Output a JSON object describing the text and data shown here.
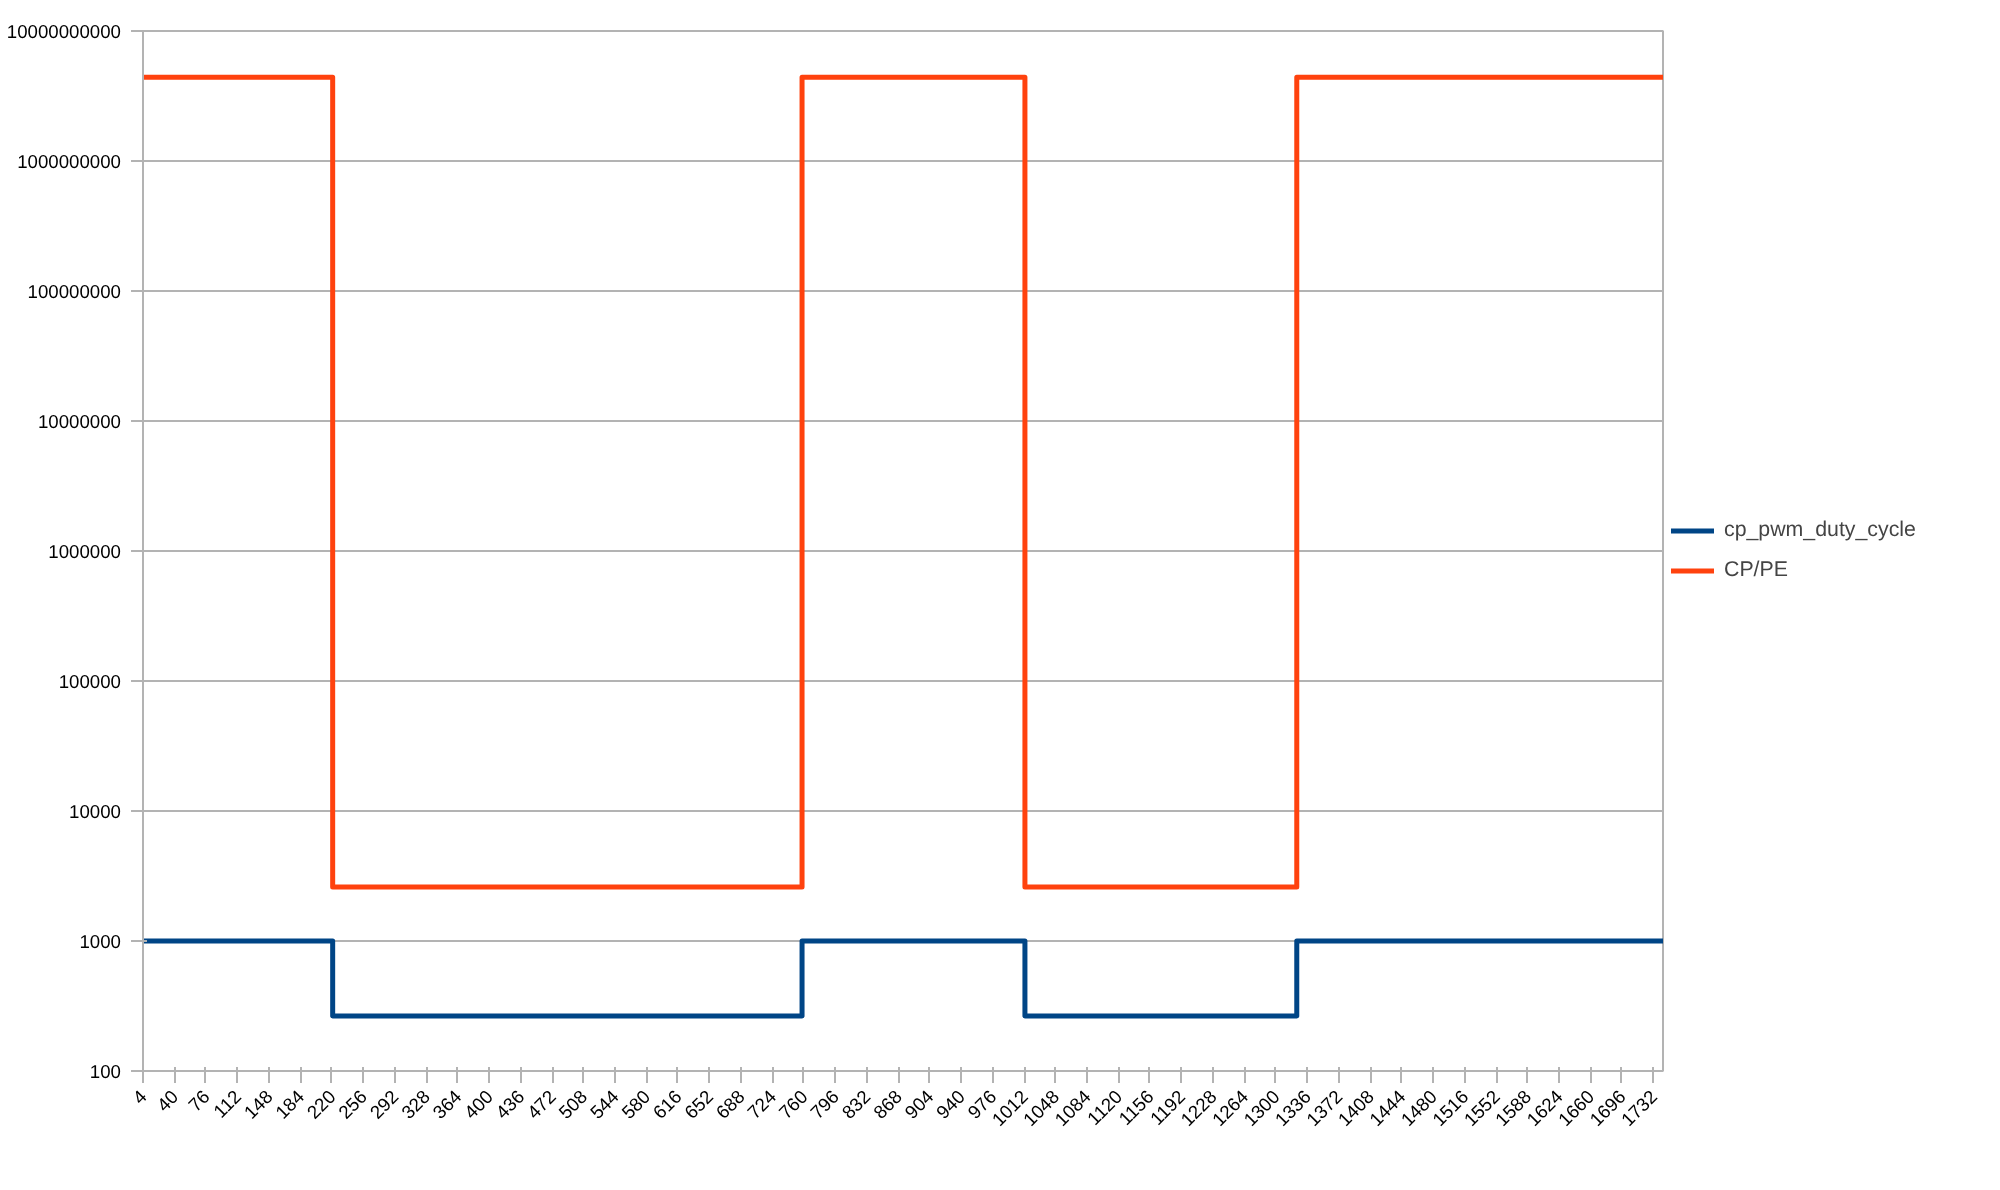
{
  "chart_data": {
    "type": "line",
    "log": "y",
    "grid": "y",
    "legend": "right",
    "line_style": "solid",
    "marker": "none",
    "xlim": [
      4,
      1743
    ],
    "xticks": [
      4,
      40,
      76,
      112,
      148,
      184,
      220,
      256,
      292,
      328,
      364,
      400,
      436,
      472,
      508,
      544,
      580,
      616,
      652,
      688,
      724,
      760,
      796,
      832,
      868,
      904,
      940,
      976,
      1012,
      1048,
      1084,
      1120,
      1156,
      1192,
      1228,
      1264,
      1300,
      1336,
      1372,
      1408,
      1444,
      1480,
      1516,
      1552,
      1588,
      1624,
      1660,
      1696,
      1732
    ],
    "ylim": [
      100,
      10000000000
    ],
    "yticks": [
      100,
      1000,
      10000,
      100000,
      1000000,
      10000000,
      100000000,
      1000000000,
      10000000000
    ],
    "series": [
      {
        "name": "cp_pwm_duty_cycle",
        "color": "#004586",
        "x": [
          4,
          221,
          221,
          758,
          758,
          1013,
          1013,
          1324,
          1324,
          1743
        ],
        "values": [
          1000,
          1000,
          265,
          265,
          1000,
          1000,
          265,
          265,
          1000,
          1000
        ]
      },
      {
        "name": "CP/PE",
        "color": "#ff420e",
        "x": [
          4,
          221,
          221,
          758,
          758,
          1013,
          1013,
          1324,
          1324,
          1743
        ],
        "values": [
          4400000000,
          4400000000,
          2600,
          2600,
          4400000000,
          4400000000,
          2600,
          2600,
          4400000000,
          4400000000
        ]
      }
    ]
  }
}
